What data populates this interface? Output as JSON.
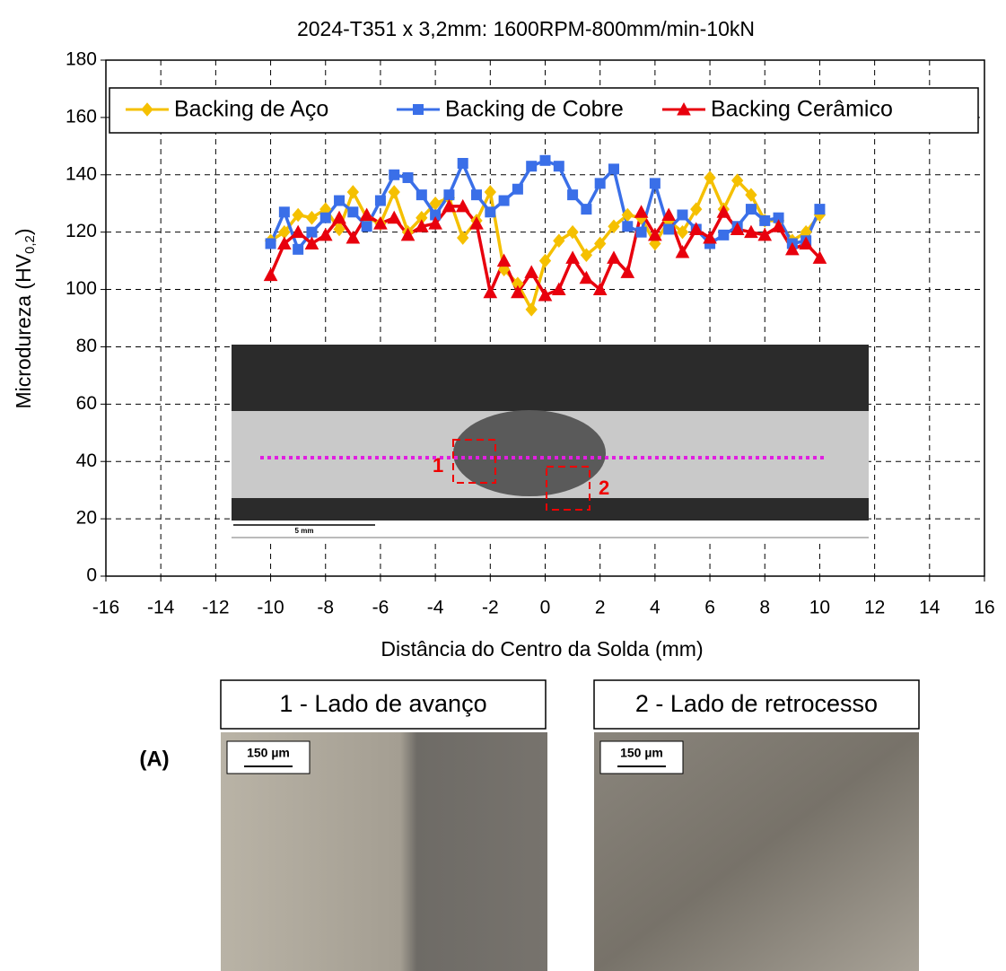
{
  "chart_data": {
    "type": "line",
    "title": "2024-T351 x 3,2mm: 1600RPM-800mm/min-10kN",
    "x_label": "Distância do Centro da Solda (mm)",
    "y_label": {
      "text": "Microdureza (HV",
      "subscript": "0,2",
      "suffix": ")"
    },
    "xlim": [
      -16,
      16
    ],
    "xticks": [
      -16,
      -14,
      -12,
      -10,
      -8,
      -6,
      -4,
      -2,
      0,
      2,
      4,
      6,
      8,
      10,
      12,
      14,
      16
    ],
    "ylim": [
      0,
      180
    ],
    "yticks": [
      0,
      20,
      40,
      60,
      80,
      100,
      120,
      140,
      160,
      180
    ],
    "grid": true,
    "legend": "top",
    "x": [
      -10,
      -9.5,
      -9,
      -8.5,
      -8,
      -7.5,
      -7,
      -6.5,
      -6,
      -5.5,
      -5,
      -4.5,
      -4,
      -3.5,
      -3,
      -2.5,
      -2,
      -1.5,
      -1,
      -0.5,
      0,
      0.5,
      1,
      1.5,
      2,
      2.5,
      3,
      3.5,
      4,
      4.5,
      5,
      5.5,
      6,
      6.5,
      7,
      7.5,
      8,
      8.5,
      9,
      9.5,
      10
    ],
    "series": [
      {
        "name": "Backing de Aço",
        "color": "#f5c000",
        "marker": "diamond",
        "values": [
          117,
          120,
          126,
          125,
          128,
          121,
          134,
          125,
          123,
          134,
          120,
          125,
          130,
          132,
          118,
          124,
          134,
          107,
          102,
          93,
          110,
          117,
          120,
          112,
          116,
          122,
          126,
          125,
          116,
          124,
          120,
          128,
          139,
          128,
          138,
          133,
          124,
          124,
          117,
          120,
          126
        ]
      },
      {
        "name": "Backing de Cobre",
        "color": "#3a6fe8",
        "marker": "square",
        "values": [
          116,
          127,
          114,
          120,
          125,
          131,
          127,
          122,
          131,
          140,
          139,
          133,
          126,
          133,
          144,
          133,
          127,
          131,
          135,
          143,
          145,
          143,
          133,
          128,
          137,
          142,
          122,
          120,
          137,
          121,
          126,
          121,
          116,
          119,
          122,
          128,
          124,
          125,
          116,
          117,
          128
        ]
      },
      {
        "name": "Backing Cerâmico",
        "color": "#e8000d",
        "marker": "triangle",
        "values": [
          105,
          116,
          120,
          116,
          119,
          125,
          118,
          126,
          123,
          125,
          119,
          122,
          123,
          129,
          129,
          123,
          99,
          110,
          99,
          106,
          98,
          100,
          111,
          104,
          100,
          111,
          106,
          127,
          119,
          126,
          113,
          121,
          118,
          127,
          121,
          120,
          119,
          122,
          114,
          116,
          111
        ]
      }
    ]
  },
  "inset": {
    "markers": [
      "1",
      "2"
    ],
    "scale_label": "5 mm"
  },
  "panel_label": "(A)",
  "panels": [
    {
      "title": "1 - Lado de avanço",
      "scale_label": "150 µm"
    },
    {
      "title": "2 - Lado de retrocesso",
      "scale_label": "150 µm"
    }
  ]
}
